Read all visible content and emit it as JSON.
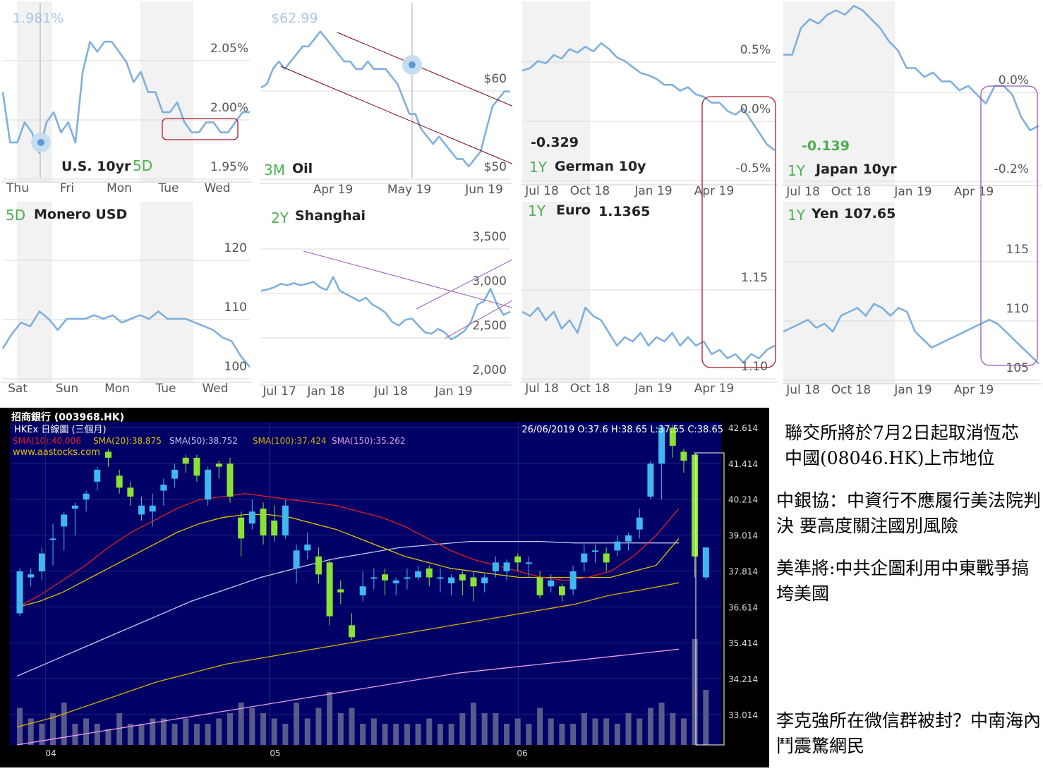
{
  "colors": {
    "line": "#7fb0dd",
    "period": "#4caf50",
    "channel": "#7a0016",
    "box": "#b2182b",
    "purple": "#9b59b6",
    "gridline": "#d9d9d9",
    "candle_bg": "#000066",
    "candle_up": "#3fb8f0",
    "candle_down": "#8ae234",
    "sma10": "#e02020",
    "sma20": "#e6c200",
    "sma50": "#c8c8f0",
    "sma100": "#d8b000",
    "sma150": "#e8a0e0"
  },
  "chart_data": [
    {
      "id": "us10yr",
      "type": "line",
      "value_label": "1.981%",
      "period": "5D",
      "title": "U.S. 10yr",
      "xticks": [
        "Thu",
        "Fri",
        "Mon",
        "Tue",
        "Wed"
      ],
      "yticks": [
        "2.05%",
        "2.00%",
        "1.95%"
      ],
      "ylim": [
        1.935,
        2.11
      ],
      "series": [
        {
          "values": [
            2.02,
            1.97,
            1.97,
            1.99,
            1.98,
            1.96,
            1.99,
            2.0,
            1.98,
            1.99,
            1.97,
            2.04,
            2.07,
            2.06,
            2.07,
            2.07,
            2.06,
            2.05,
            2.03,
            2.04,
            2.02,
            2.02,
            2.0,
            2.0,
            2.01,
            1.99,
            1.98,
            1.98,
            1.99,
            1.99,
            1.98,
            1.98,
            1.99,
            2.0,
            2.0
          ]
        }
      ]
    },
    {
      "id": "oil",
      "type": "line",
      "value_label": "$62.99",
      "period": "3M",
      "title": "Oil",
      "xticks": [
        "Apr 19",
        "May 19",
        "Jun 19"
      ],
      "yticks": [
        "$60",
        "$50"
      ],
      "ylim": [
        48.5,
        72
      ],
      "series": [
        {
          "values": [
            60.5,
            61,
            63,
            64,
            63,
            64,
            65,
            66,
            66,
            67,
            68,
            67,
            66,
            65,
            64,
            64,
            63,
            63,
            64,
            63,
            63,
            63,
            62,
            61,
            59,
            57,
            57,
            55,
            54,
            53,
            54,
            53,
            52,
            51,
            51,
            50,
            51,
            52,
            55,
            58,
            59,
            60,
            60
          ]
        }
      ]
    },
    {
      "id": "german10y",
      "type": "line",
      "value_label": "-0.329",
      "period": "1Y",
      "title": "German 10y",
      "xticks": [
        "Jul 18",
        "Oct 18",
        "Jan 19",
        "Apr 19"
      ],
      "yticks": [
        "0.5%",
        "0.0%",
        "-0.5%"
      ],
      "ylim": [
        -0.58,
        0.9
      ],
      "series": [
        {
          "values": [
            0.32,
            0.34,
            0.4,
            0.38,
            0.45,
            0.42,
            0.5,
            0.47,
            0.52,
            0.48,
            0.55,
            0.5,
            0.43,
            0.4,
            0.35,
            0.3,
            0.28,
            0.25,
            0.2,
            0.2,
            0.15,
            0.18,
            0.12,
            0.1,
            0.05,
            0.05,
            -0.02,
            -0.05,
            0.0,
            -0.1,
            -0.2,
            -0.3,
            -0.35
          ]
        }
      ]
    },
    {
      "id": "japan10yr",
      "type": "line",
      "value_label": "-0.139",
      "period": "1Y",
      "title": "Japan 10yr",
      "xticks": [
        "Jul 18",
        "Oct 18",
        "Jan 19",
        "Apr 19"
      ],
      "yticks": [
        "0.0%",
        "-0.2%"
      ],
      "ylim": [
        -0.25,
        0.15
      ],
      "series": [
        {
          "values": [
            0.03,
            0.03,
            0.09,
            0.11,
            0.1,
            0.12,
            0.13,
            0.12,
            0.14,
            0.13,
            0.11,
            0.09,
            0.06,
            0.04,
            0.0,
            0.0,
            -0.02,
            -0.01,
            -0.03,
            -0.03,
            -0.05,
            -0.04,
            -0.06,
            -0.08,
            -0.04,
            -0.04,
            -0.06,
            -0.11,
            -0.14,
            -0.13
          ]
        }
      ]
    },
    {
      "id": "monero",
      "type": "line",
      "value_label": "",
      "period": "5D",
      "title": "Monero USD",
      "xticks": [
        "Sat",
        "Sun",
        "Mon",
        "Tue",
        "Wed"
      ],
      "yticks": [
        "120",
        "110",
        "100"
      ],
      "ylim": [
        98,
        130
      ],
      "series": [
        {
          "values": [
            106,
            110,
            113,
            112,
            116,
            114,
            111,
            114,
            114,
            114,
            115,
            114,
            115,
            113,
            114,
            115,
            114,
            116,
            114,
            114,
            114,
            113,
            112,
            111,
            109,
            108,
            104,
            101
          ]
        }
      ]
    },
    {
      "id": "shanghai",
      "type": "line",
      "value_label": "",
      "period": "2Y",
      "title": "Shanghai",
      "xticks": [
        "Jul 17",
        "Jan 18",
        "Jul 18",
        "Jan 19"
      ],
      "yticks": [
        "3,500",
        "3,000",
        "2,500",
        "2,000"
      ],
      "ylim": [
        1920,
        3650
      ],
      "series": [
        {
          "values": [
            3200,
            3220,
            3250,
            3300,
            3280,
            3310,
            3280,
            3300,
            3330,
            3250,
            3210,
            3400,
            3200,
            3150,
            3100,
            3050,
            3100,
            3000,
            2950,
            2880,
            2750,
            2700,
            2780,
            2800,
            2700,
            2600,
            2580,
            2650,
            2600,
            2500,
            2550,
            2620,
            2750,
            3000,
            3050,
            3230,
            3000,
            2850,
            2900
          ]
        }
      ]
    },
    {
      "id": "euro",
      "type": "line",
      "value_label": "1.1365",
      "period": "1Y",
      "title": "Euro",
      "xticks": [
        "Jul 18",
        "Oct 18",
        "Jan 19",
        "Apr 19"
      ],
      "yticks": [
        "1.15",
        "1.10"
      ],
      "ylim": [
        1.09,
        1.25
      ],
      "series": [
        {
          "values": [
            1.17,
            1.165,
            1.175,
            1.16,
            1.17,
            1.15,
            1.16,
            1.145,
            1.175,
            1.165,
            1.16,
            1.145,
            1.13,
            1.14,
            1.135,
            1.145,
            1.13,
            1.14,
            1.135,
            1.145,
            1.13,
            1.14,
            1.13,
            1.135,
            1.12,
            1.125,
            1.115,
            1.12,
            1.11,
            1.12,
            1.115,
            1.125,
            1.13
          ]
        }
      ]
    },
    {
      "id": "yen",
      "type": "line",
      "value_label": "107.65",
      "period": "1Y",
      "title": "Yen",
      "xticks": [
        "Jul 18",
        "Oct 18",
        "Jan 19",
        "Apr 19"
      ],
      "yticks": [
        "115",
        "110",
        "105"
      ],
      "ylim": [
        104,
        121
      ],
      "series": [
        {
          "values": [
            110,
            110.5,
            111,
            111.5,
            110.5,
            111,
            110,
            112,
            112.5,
            113,
            112,
            113.5,
            113,
            112,
            113,
            112.5,
            110,
            109,
            108,
            108.5,
            109,
            109.5,
            110,
            110.5,
            111,
            111.5,
            111,
            110,
            109,
            108,
            107,
            106
          ]
        }
      ]
    },
    {
      "id": "cmb",
      "type": "candlestick",
      "title": "招商銀行 (003968.HK)",
      "subtitle": "HKEx 日線圖 (三個月)",
      "date_info": "26/06/2019  O:37.6  H:38.65  L:37.55  C:38.65",
      "website": "www.aastocks.com",
      "sma_labels": [
        {
          "text": "SMA(10):40.006",
          "key": "sma10"
        },
        {
          "text": "SMA(20):38.875",
          "key": "sma20"
        },
        {
          "text": "SMA(50):38.752",
          "key": "sma50"
        },
        {
          "text": "SMA(100):37.424",
          "key": "sma100"
        },
        {
          "text": "SMA(150):35.262",
          "key": "sma150"
        }
      ],
      "yticks": [
        "42.614",
        "41.414",
        "40.214",
        "39.014",
        "37.814",
        "36.614",
        "35.414",
        "34.214",
        "33.014"
      ],
      "ylim": [
        32.0,
        42.8
      ],
      "xticks": [
        "04",
        "05",
        "06"
      ],
      "candles": [
        [
          36.4,
          37.8,
          36.3,
          37.9
        ],
        [
          37.6,
          37.7,
          37.3,
          37.9
        ],
        [
          37.8,
          38.4,
          37.5,
          38.6
        ],
        [
          38.9,
          38.9,
          38.0,
          39.4
        ],
        [
          39.3,
          39.7,
          38.5,
          39.8
        ],
        [
          39.9,
          40.0,
          39.0,
          40.1
        ],
        [
          40.2,
          40.4,
          39.8,
          40.5
        ],
        [
          40.8,
          41.2,
          40.5,
          41.3
        ],
        [
          41.8,
          41.6,
          41.3,
          41.9
        ],
        [
          41.0,
          40.6,
          40.4,
          41.2
        ],
        [
          40.6,
          40.3,
          40.0,
          40.8
        ],
        [
          39.7,
          40.0,
          39.5,
          40.3
        ],
        [
          39.8,
          40.0,
          39.3,
          40.4
        ],
        [
          40.5,
          40.7,
          40.0,
          40.9
        ],
        [
          40.9,
          41.2,
          40.6,
          41.4
        ],
        [
          41.6,
          41.4,
          41.1,
          41.7
        ],
        [
          41.6,
          41.0,
          40.8,
          41.7
        ],
        [
          40.2,
          41.2,
          40.0,
          41.3
        ],
        [
          41.4,
          41.3,
          40.9,
          41.5
        ],
        [
          41.4,
          40.3,
          40.1,
          41.6
        ],
        [
          39.6,
          38.9,
          38.3,
          39.8
        ],
        [
          39.4,
          39.8,
          39.2,
          40.2
        ],
        [
          39.9,
          39.0,
          38.7,
          40.1
        ],
        [
          39.5,
          39.0,
          38.8,
          40.0
        ],
        [
          39.0,
          40.0,
          38.9,
          40.2
        ],
        [
          37.9,
          38.5,
          37.4,
          38.7
        ],
        [
          38.5,
          38.7,
          38.2,
          39.1
        ],
        [
          38.3,
          37.7,
          37.4,
          38.6
        ],
        [
          38.1,
          36.3,
          36.0,
          38.2
        ],
        [
          37.2,
          37.1,
          36.7,
          37.5
        ],
        [
          36.0,
          35.6,
          35.5,
          36.4
        ],
        [
          37.0,
          37.3,
          36.8,
          37.8
        ],
        [
          37.6,
          37.6,
          37.2,
          37.9
        ],
        [
          37.7,
          37.5,
          37.0,
          37.9
        ],
        [
          37.4,
          37.5,
          37.0,
          37.6
        ],
        [
          37.6,
          37.6,
          37.2,
          37.9
        ],
        [
          37.6,
          37.8,
          37.5,
          38.0
        ],
        [
          37.9,
          37.6,
          37.3,
          38.0
        ],
        [
          37.6,
          37.6,
          37.1,
          37.9
        ],
        [
          37.4,
          37.6,
          37.0,
          37.7
        ],
        [
          37.7,
          37.5,
          37.0,
          37.8
        ],
        [
          37.6,
          37.3,
          36.8,
          37.8
        ],
        [
          37.4,
          37.6,
          37.1,
          37.7
        ],
        [
          37.8,
          38.1,
          37.6,
          38.3
        ],
        [
          37.8,
          38.1,
          37.5,
          38.2
        ],
        [
          38.3,
          38.1,
          37.8,
          38.4
        ],
        [
          38.1,
          38.1,
          37.6,
          38.3
        ],
        [
          37.6,
          37.0,
          36.9,
          37.8
        ],
        [
          37.3,
          37.5,
          37.1,
          37.7
        ],
        [
          37.3,
          37.0,
          36.8,
          37.4
        ],
        [
          37.2,
          37.8,
          37.0,
          38.0
        ],
        [
          38.1,
          38.4,
          37.8,
          38.7
        ],
        [
          38.5,
          38.5,
          38.1,
          38.7
        ],
        [
          38.4,
          38.1,
          37.8,
          38.6
        ],
        [
          38.5,
          38.8,
          38.3,
          39.0
        ],
        [
          38.8,
          39.0,
          38.5,
          39.1
        ],
        [
          39.2,
          39.6,
          38.9,
          39.9
        ],
        [
          40.3,
          41.4,
          40.2,
          41.5
        ],
        [
          41.4,
          42.6,
          40.2,
          42.7
        ],
        [
          42.6,
          42.0,
          41.6,
          42.7
        ],
        [
          41.8,
          41.5,
          41.1,
          41.9
        ],
        [
          41.7,
          38.3,
          37.6,
          41.8
        ],
        [
          37.6,
          38.6,
          37.5,
          38.6
        ]
      ],
      "volume_rel": [
        0.35,
        0.25,
        0.2,
        0.3,
        0.4,
        0.2,
        0.25,
        0.2,
        0.15,
        0.3,
        0.2,
        0.2,
        0.25,
        0.25,
        0.2,
        0.25,
        0.2,
        0.2,
        0.25,
        0.3,
        0.4,
        0.35,
        0.3,
        0.25,
        0.2,
        0.4,
        0.25,
        0.35,
        0.5,
        0.3,
        0.35,
        0.2,
        0.25,
        0.2,
        0.2,
        0.2,
        0.2,
        0.25,
        0.2,
        0.2,
        0.3,
        0.4,
        0.3,
        0.3,
        0.2,
        0.25,
        0.2,
        0.35,
        0.25,
        0.2,
        0.2,
        0.3,
        0.25,
        0.25,
        0.2,
        0.3,
        0.25,
        0.35,
        0.4,
        0.3,
        0.25,
        1.0,
        0.52
      ],
      "sma10": [
        36.6,
        37.0,
        37.5,
        38.0,
        38.6,
        39.1,
        39.5,
        39.9,
        40.2,
        40.3,
        40.4,
        40.3,
        40.2,
        40.1,
        40.0,
        39.8,
        39.6,
        39.3,
        38.9,
        38.5,
        38.2,
        38.0,
        37.8,
        37.6,
        37.5,
        37.6,
        37.8,
        38.3,
        39.0,
        39.9
      ],
      "sma20": [
        36.6,
        36.8,
        37.1,
        37.5,
        37.9,
        38.3,
        38.7,
        39.1,
        39.4,
        39.6,
        39.7,
        39.7,
        39.6,
        39.4,
        39.2,
        38.9,
        38.6,
        38.3,
        38.1,
        37.9,
        37.8,
        37.7,
        37.6,
        37.6,
        37.6,
        37.6,
        37.6,
        37.8,
        38.0,
        38.9
      ],
      "sma50": [
        34.3,
        34.8,
        35.3,
        35.8,
        36.3,
        36.8,
        37.2,
        37.6,
        37.9,
        38.2,
        38.4,
        38.6,
        38.7,
        38.8,
        38.8,
        38.8,
        38.75,
        38.75,
        38.75,
        38.75
      ],
      "sma100": [
        32.6,
        32.9,
        33.3,
        33.7,
        34.1,
        34.4,
        34.7,
        34.9,
        35.1,
        35.3,
        35.5,
        35.7,
        35.9,
        36.1,
        36.3,
        36.5,
        36.7,
        37.0,
        37.2,
        37.42
      ],
      "sma150": [
        32.0,
        32.3,
        32.6,
        32.9,
        33.2,
        33.5,
        33.8,
        34.1,
        34.4,
        34.6,
        34.8,
        35.0,
        35.2
      ]
    }
  ],
  "news": [
    "聯交所將於7月2日起取消恆芯中國(08046.HK)上市地位",
    "中銀協：中資行不應履行美法院判決 要高度關注國別風險",
    "美準將:中共企圖利用中東戰爭搞垮美國",
    "李克強所在微信群被封？中南海內鬥震驚網民"
  ]
}
